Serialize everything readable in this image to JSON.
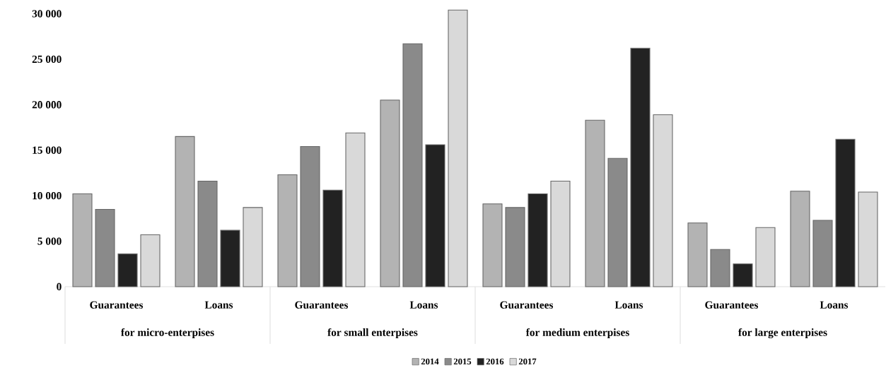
{
  "chart_data": {
    "type": "bar",
    "categories": [
      "Guarantees",
      "Loans",
      "Guarantees",
      "Loans",
      "Guarantees",
      "Loans",
      "Guarantees",
      "Loans"
    ],
    "series": [
      {
        "name": "2014",
        "color": "#b3b3b3",
        "values": [
          10200,
          16500,
          12300,
          20500,
          9100,
          18300,
          7000,
          10500
        ]
      },
      {
        "name": "2015",
        "color": "#8a8a8a",
        "values": [
          8500,
          11600,
          15400,
          26700,
          8700,
          14100,
          4100,
          7300
        ]
      },
      {
        "name": "2016",
        "color": "#222222",
        "values": [
          3600,
          6200,
          10600,
          15600,
          10200,
          26200,
          2500,
          16200
        ]
      },
      {
        "name": "2017",
        "color": "#d9d9d9",
        "values": [
          5700,
          8700,
          16900,
          30400,
          11600,
          18900,
          6500,
          10400
        ]
      }
    ],
    "ylim": [
      0,
      30500
    ],
    "yticks": [
      0,
      {
        "value": 5000,
        "label": "5 000"
      },
      {
        "value": 10000,
        "label": "10 000"
      },
      {
        "value": 15000,
        "label": "15 000"
      },
      {
        "value": 20000,
        "label": "20 000"
      },
      {
        "value": 25000,
        "label": "25 000"
      },
      {
        "value": 30000,
        "label": "30 000"
      }
    ],
    "annotations": [
      "for micro-enterpises",
      "for small enterpises",
      "for medium enterpises",
      "for large enterpises"
    ],
    "legend": "bottom"
  }
}
